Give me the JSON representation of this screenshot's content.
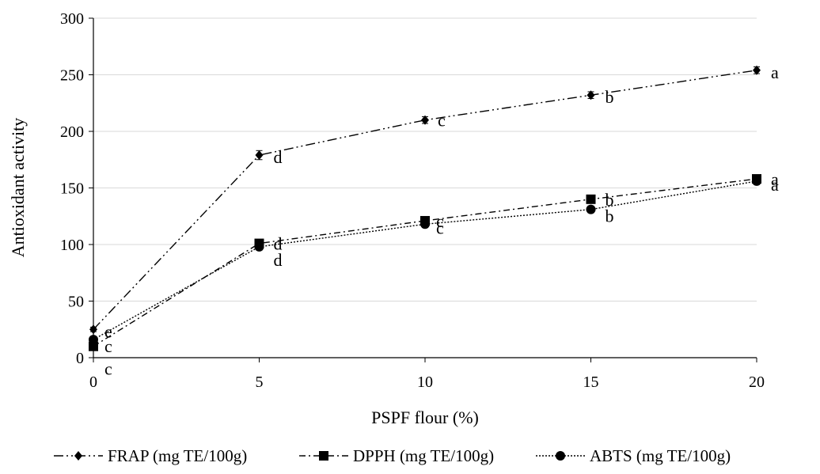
{
  "chart_data": {
    "type": "line",
    "x": [
      0,
      5,
      10,
      15,
      20
    ],
    "xlabel": "PSPF flour (%)",
    "ylabel": "Antioxidant activity",
    "xlim": [
      0,
      20
    ],
    "ylim": [
      0,
      300
    ],
    "xticks": [
      "0",
      "5",
      "10",
      "15",
      "20"
    ],
    "yticks": [
      "0",
      "50",
      "100",
      "150",
      "200",
      "250",
      "300"
    ],
    "grid": "horizontal",
    "legend": "bottom",
    "series": [
      {
        "name": "FRAP (mg TE/100g)",
        "values": [
          25,
          179,
          210,
          232,
          254
        ],
        "errors": [
          2,
          4,
          3,
          3,
          3
        ],
        "letters": [
          "e",
          "d",
          "c",
          "b",
          "a"
        ],
        "marker": "diamond",
        "dash": "dash-dot-dot",
        "color": "#000000"
      },
      {
        "name": "DPPH (mg TE/100g)",
        "values": [
          10,
          101,
          121,
          140,
          158
        ],
        "errors": [
          2,
          3,
          3,
          3,
          3
        ],
        "letters": [
          "c",
          "d",
          "c",
          "b",
          "a"
        ],
        "marker": "square",
        "dash": "dash-dot",
        "color": "#000000"
      },
      {
        "name": "ABTS (mg TE/100g)",
        "values": [
          16,
          98,
          118,
          131,
          156
        ],
        "errors": [
          2,
          3,
          3,
          3,
          3
        ],
        "letters": [
          "c",
          "d",
          "c",
          "b",
          "a"
        ],
        "marker": "circle",
        "dash": "dotted",
        "color": "#000000"
      }
    ]
  }
}
